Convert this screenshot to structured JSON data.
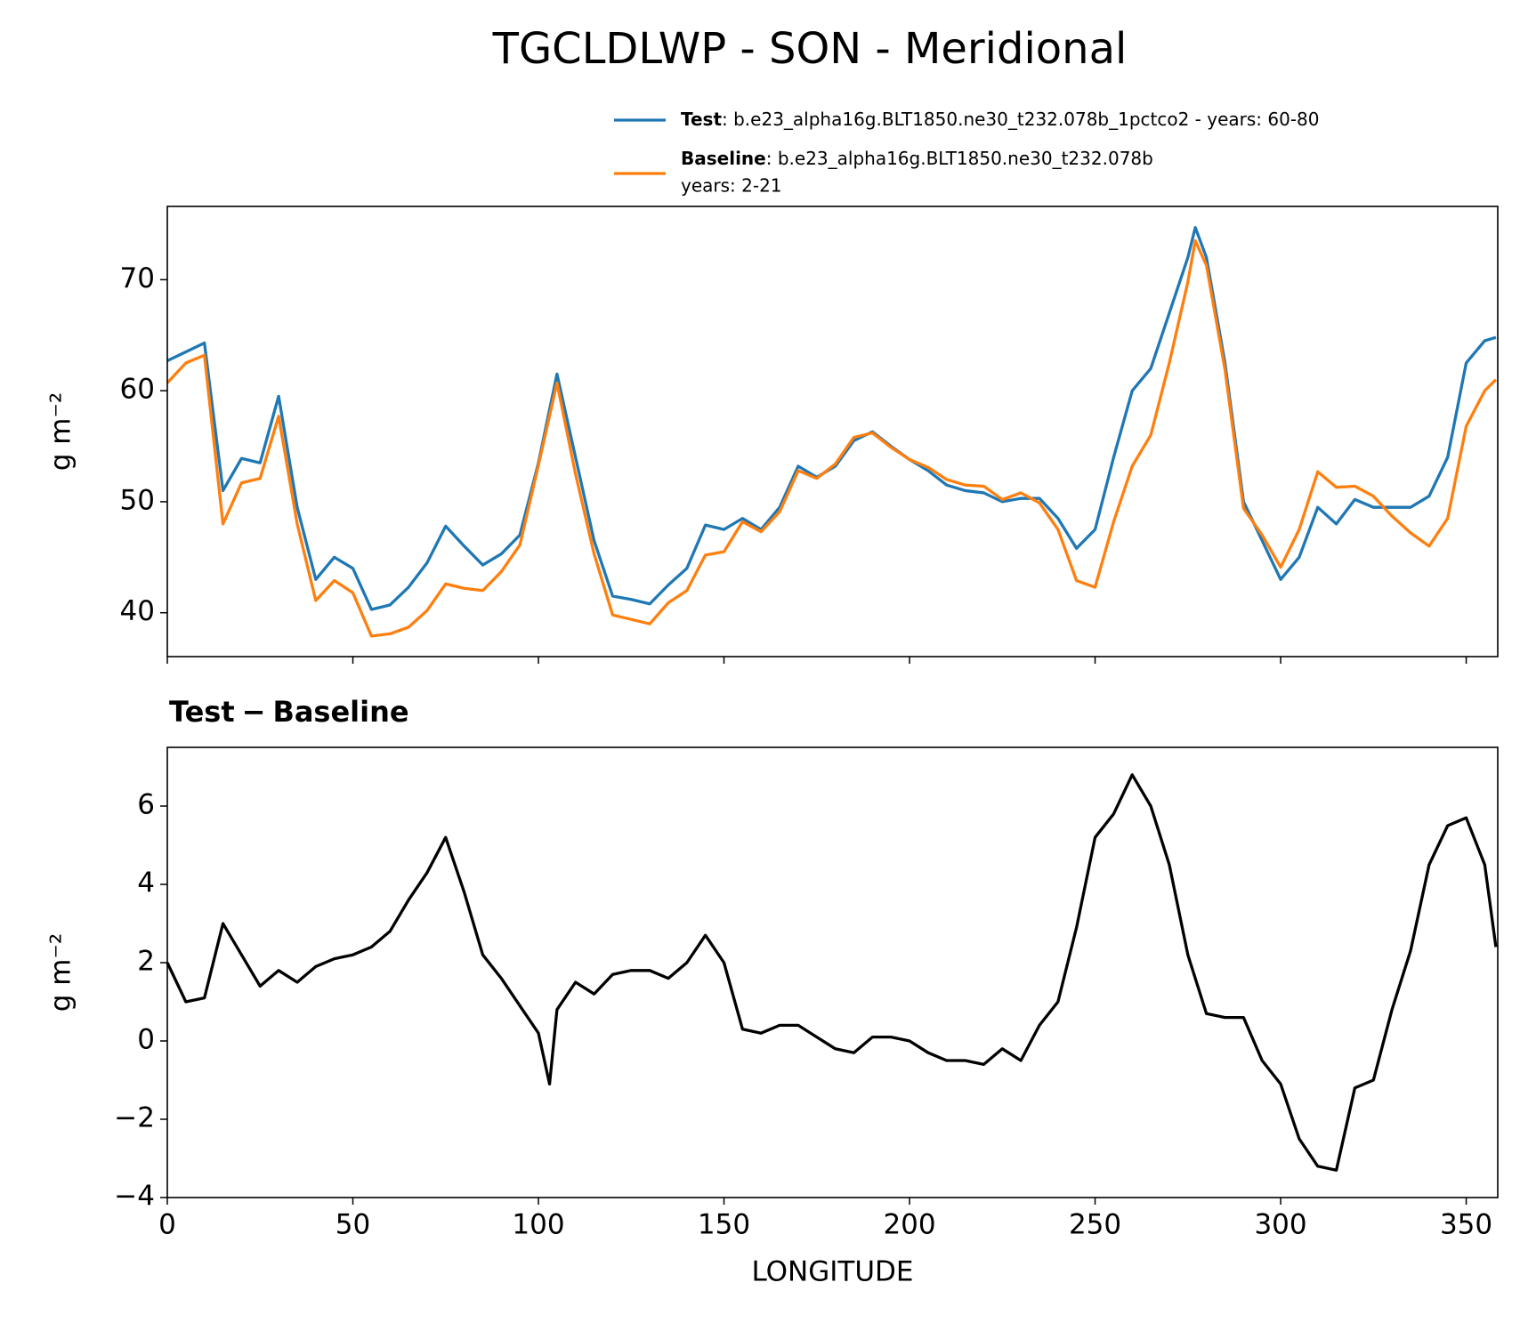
{
  "title": "TGCLDLWP - SON - Meridional",
  "chart_data": [
    {
      "type": "line",
      "ylabel": "g m⁻²",
      "x": [
        0,
        5,
        10,
        15,
        20,
        25,
        30,
        35,
        40,
        45,
        50,
        55,
        60,
        65,
        70,
        75,
        80,
        85,
        90,
        95,
        100,
        105,
        110,
        115,
        120,
        125,
        130,
        135,
        140,
        145,
        150,
        155,
        160,
        165,
        170,
        175,
        180,
        185,
        190,
        195,
        200,
        205,
        210,
        215,
        220,
        225,
        230,
        235,
        240,
        245,
        250,
        255,
        260,
        265,
        270,
        275,
        277,
        280,
        285,
        290,
        295,
        300,
        305,
        310,
        315,
        320,
        325,
        330,
        335,
        340,
        345,
        350,
        355,
        358
      ],
      "series": [
        {
          "name": "Test",
          "description": [
            ": b.e23_alpha16g.BLT1850.ne30_t232.078b_1pctco2 - years: 60-80"
          ],
          "color": "#1f77b4",
          "values": [
            62.7,
            63.5,
            64.3,
            51,
            53.9,
            53.5,
            59.5,
            49.5,
            43,
            45,
            44,
            40.3,
            40.7,
            42.3,
            44.5,
            47.8,
            46,
            44.3,
            45.3,
            47,
            53.5,
            61.5,
            54,
            46.5,
            41.5,
            41.2,
            40.8,
            42.5,
            44,
            47.9,
            47.5,
            48.5,
            47.5,
            49.5,
            53.2,
            52.2,
            53.2,
            55.5,
            56.3,
            55,
            53.8,
            52.8,
            51.5,
            51,
            50.8,
            50,
            50.3,
            50.3,
            48.5,
            45.8,
            47.5,
            54,
            60,
            62,
            67,
            72,
            74.7,
            72,
            62.5,
            50,
            46.5,
            43,
            45,
            49.5,
            48,
            50.2,
            49.5,
            49.5,
            49.5,
            50.5,
            54,
            62.5,
            64.5,
            64.8
          ]
        },
        {
          "name": "Baseline",
          "description": [
            ": b.e23_alpha16g.BLT1850.ne30_t232.078b",
            "years: 2-21"
          ],
          "color": "#ff7f0e",
          "values": [
            60.7,
            62.5,
            63.2,
            48,
            51.7,
            52.1,
            57.7,
            48,
            41.1,
            42.9,
            41.8,
            37.9,
            38.1,
            38.7,
            40.2,
            42.6,
            42.2,
            42,
            43.7,
            46.1,
            53.3,
            60.7,
            52.5,
            45.3,
            39.8,
            39.4,
            39,
            40.9,
            42,
            45.2,
            45.5,
            48.2,
            47.3,
            49.1,
            52.8,
            52.1,
            53.4,
            55.8,
            56.2,
            54.9,
            53.8,
            53.1,
            52,
            51.5,
            51.4,
            50.2,
            50.8,
            49.9,
            47.5,
            42.9,
            42.3,
            48.2,
            53.2,
            56,
            62.5,
            69.8,
            73.5,
            71.3,
            61.9,
            49.4,
            47,
            44.1,
            47.5,
            52.7,
            51.3,
            51.4,
            50.5,
            48.7,
            47.2,
            46,
            48.5,
            56.8,
            60,
            61
          ]
        }
      ],
      "xlim": [
        0,
        358.5
      ],
      "xticks": [
        0,
        50,
        100,
        150,
        200,
        250,
        300,
        350
      ],
      "ylim": [
        36.05,
        76.6
      ],
      "yticks": [
        40,
        50,
        60,
        70
      ]
    },
    {
      "type": "line",
      "title": [
        "Test",
        "−",
        "Baseline"
      ],
      "ylabel": "g m⁻²",
      "xlabel": "LONGITUDE",
      "x": [
        0,
        5,
        10,
        15,
        20,
        25,
        30,
        35,
        40,
        45,
        50,
        55,
        60,
        65,
        70,
        75,
        80,
        85,
        90,
        95,
        100,
        103,
        105,
        110,
        115,
        120,
        125,
        130,
        135,
        140,
        145,
        150,
        155,
        160,
        165,
        170,
        175,
        180,
        185,
        190,
        195,
        200,
        205,
        210,
        215,
        220,
        225,
        230,
        235,
        240,
        245,
        250,
        255,
        260,
        265,
        270,
        275,
        280,
        285,
        290,
        295,
        300,
        305,
        310,
        315,
        320,
        325,
        330,
        335,
        340,
        345,
        350,
        355,
        358
      ],
      "series": [
        {
          "name": "Test − Baseline",
          "color": "#000000",
          "values": [
            2.0,
            1.0,
            1.1,
            3.0,
            2.2,
            1.4,
            1.8,
            1.5,
            1.9,
            2.1,
            2.2,
            2.4,
            2.8,
            3.6,
            4.3,
            5.2,
            3.8,
            2.2,
            1.6,
            0.9,
            0.2,
            -1.1,
            0.8,
            1.5,
            1.2,
            1.7,
            1.8,
            1.8,
            1.6,
            2.0,
            2.7,
            2.0,
            0.3,
            0.2,
            0.4,
            0.4,
            0.1,
            -0.2,
            -0.3,
            0.1,
            0.1,
            0.0,
            -0.3,
            -0.5,
            -0.5,
            -0.6,
            -0.2,
            -0.5,
            0.4,
            1.0,
            2.9,
            5.2,
            5.8,
            6.8,
            6.0,
            4.5,
            2.2,
            0.7,
            0.6,
            0.6,
            -0.5,
            -1.1,
            -2.5,
            -3.2,
            -3.3,
            -1.2,
            -1.0,
            0.8,
            2.3,
            4.5,
            5.5,
            5.7,
            4.5,
            2.4
          ]
        }
      ],
      "xlim": [
        0,
        358.5
      ],
      "xticks": [
        0,
        50,
        100,
        150,
        200,
        250,
        300,
        350
      ],
      "ylim": [
        -4,
        7.5
      ],
      "yticks": [
        {
          "value": -4,
          "label": "−4"
        },
        {
          "value": -2,
          "label": "−2"
        },
        0,
        2,
        4,
        6
      ]
    }
  ]
}
